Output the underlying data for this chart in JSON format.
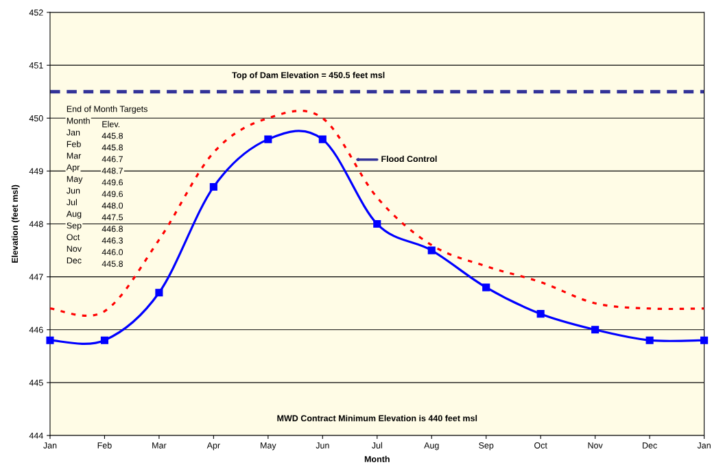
{
  "chart_data": {
    "type": "line",
    "xlabel": "Month",
    "ylabel": "Elevation (feet msl)",
    "categories": [
      "Jan",
      "Feb",
      "Mar",
      "Apr",
      "May",
      "Jun",
      "Jul",
      "Aug",
      "Sep",
      "Oct",
      "Nov",
      "Dec",
      "Jan"
    ],
    "series": [
      {
        "color": "#ff0000",
        "marker": "none",
        "line_style": "dotted",
        "values": [
          446.4,
          446.35,
          447.7,
          449.35,
          450.0,
          450.0,
          448.5,
          447.6,
          447.2,
          446.9,
          446.5,
          446.4,
          446.4
        ]
      },
      {
        "color": "#0000ff",
        "marker": "square",
        "line_style": "solid",
        "values": [
          445.8,
          445.8,
          446.7,
          448.7,
          449.6,
          449.6,
          448.0,
          447.5,
          446.8,
          446.3,
          446.0,
          445.8,
          445.8
        ]
      }
    ],
    "ylim": [
      444,
      452
    ],
    "yticks": [
      444,
      445,
      446,
      447,
      448,
      449,
      450,
      451,
      452
    ],
    "grid": "y",
    "ref_lines": [
      {
        "axis": "y",
        "value": 450.5,
        "label": "Top of Dam Elevation = 450.5 feet msl",
        "color": "#333399",
        "line_style": "dashed"
      }
    ],
    "annotations": [
      "MWD Contract Minimum Elevation is 440 feet msl",
      "Flood Control",
      "End of Month Targets",
      "Month",
      "Elev.",
      "Jan",
      "445.8",
      "Feb",
      "445.8",
      "Mar",
      "446.7",
      "Apr",
      "448.7",
      "May",
      "449.6",
      "Jun",
      "449.6",
      "Jul",
      "448.0",
      "Aug",
      "447.5",
      "Sep",
      "446.8",
      "Oct",
      "446.3",
      "Nov",
      "446.0",
      "Dec",
      "445.8"
    ]
  }
}
